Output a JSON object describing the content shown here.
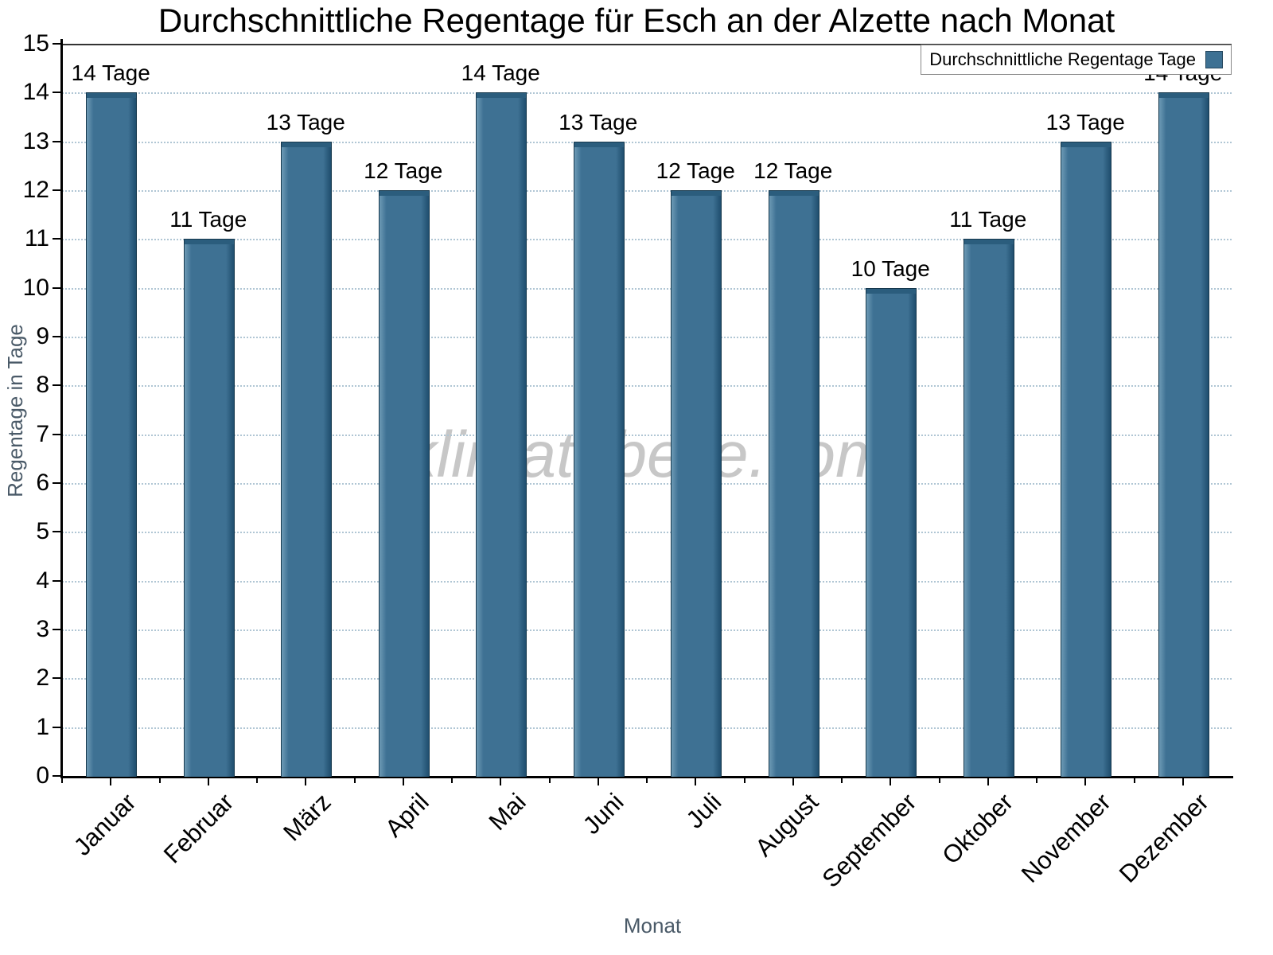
{
  "watermark": "klimatabelle.com",
  "legend": {
    "label": "Durchschnittliche Regentage Tage"
  },
  "colors": {
    "bar": "#3E7193",
    "bar_edge": "#16384d",
    "bar_cap": "#2b5d7d",
    "grid": "#b0c6d4",
    "axis": "#000000"
  },
  "chart_data": {
    "type": "bar",
    "title": "Durchschnittliche Regentage für Esch an der Alzette nach Monat",
    "xlabel": "Monat",
    "ylabel": "Regentage in Tage",
    "categories": [
      "Januar",
      "Februar",
      "März",
      "April",
      "Mai",
      "Juni",
      "Juli",
      "August",
      "September",
      "Oktober",
      "November",
      "Dezember"
    ],
    "values": [
      14,
      11,
      13,
      12,
      14,
      13,
      12,
      12,
      10,
      11,
      13,
      14
    ],
    "bar_labels": [
      "14 Tage",
      "11 Tage",
      "13 Tage",
      "12 Tage",
      "14 Tage",
      "13 Tage",
      "12 Tage",
      "12 Tage",
      "10 Tage",
      "11 Tage",
      "13 Tage",
      "14 Tage"
    ],
    "value_suffix": " Tage",
    "ylim": [
      0,
      15
    ],
    "ytick_step": 1,
    "grid": "horizontal-dotted",
    "legend_entries": [
      "Durchschnittliche Regentage Tage"
    ],
    "legend_position": "top-right"
  }
}
